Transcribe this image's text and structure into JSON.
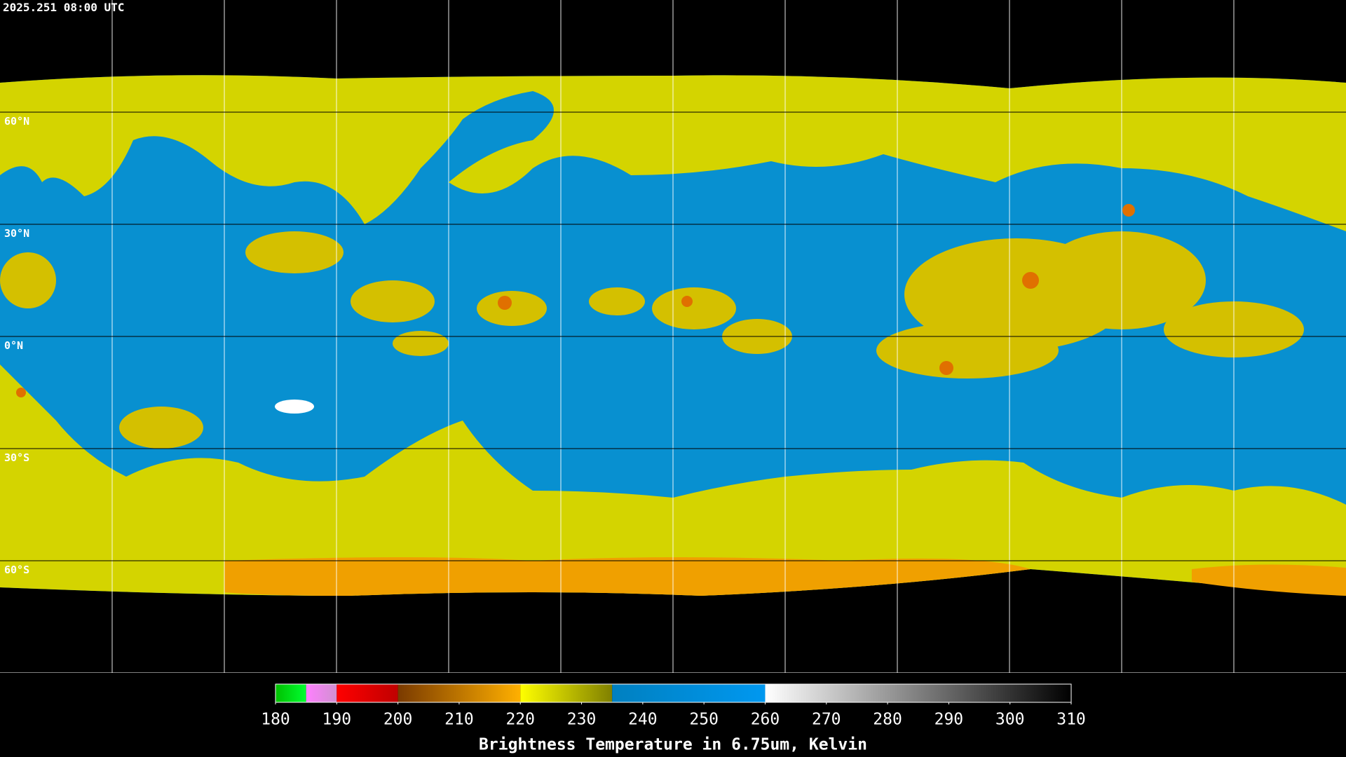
{
  "header": {
    "timestamp": "2025.251 08:00 UTC"
  },
  "map": {
    "latitude_labels": [
      "60°N",
      "30°N",
      "0°N",
      "30°S",
      "60°S"
    ]
  },
  "colorbar": {
    "title": "Brightness Temperature in 6.75um, Kelvin",
    "range": [
      180,
      310
    ],
    "ticks": [
      180,
      190,
      200,
      210,
      220,
      230,
      240,
      250,
      260,
      270,
      280,
      290,
      300,
      310
    ],
    "segments": [
      {
        "from": 180,
        "to": 185,
        "colors": [
          "#00c000",
          "#00ff30"
        ]
      },
      {
        "from": 185,
        "to": 190,
        "colors": [
          "#ff80ff",
          "#d090d0"
        ]
      },
      {
        "from": 190,
        "to": 200,
        "colors": [
          "#ff0000",
          "#c00000"
        ]
      },
      {
        "from": 200,
        "to": 220,
        "colors": [
          "#7a3a00",
          "#ffb000"
        ]
      },
      {
        "from": 220,
        "to": 235,
        "colors": [
          "#ffff00",
          "#808000"
        ]
      },
      {
        "from": 235,
        "to": 260,
        "colors": [
          "#0080c0",
          "#0098f0"
        ]
      },
      {
        "from": 260,
        "to": 310,
        "colors": [
          "#ffffff",
          "#000000"
        ]
      }
    ]
  }
}
